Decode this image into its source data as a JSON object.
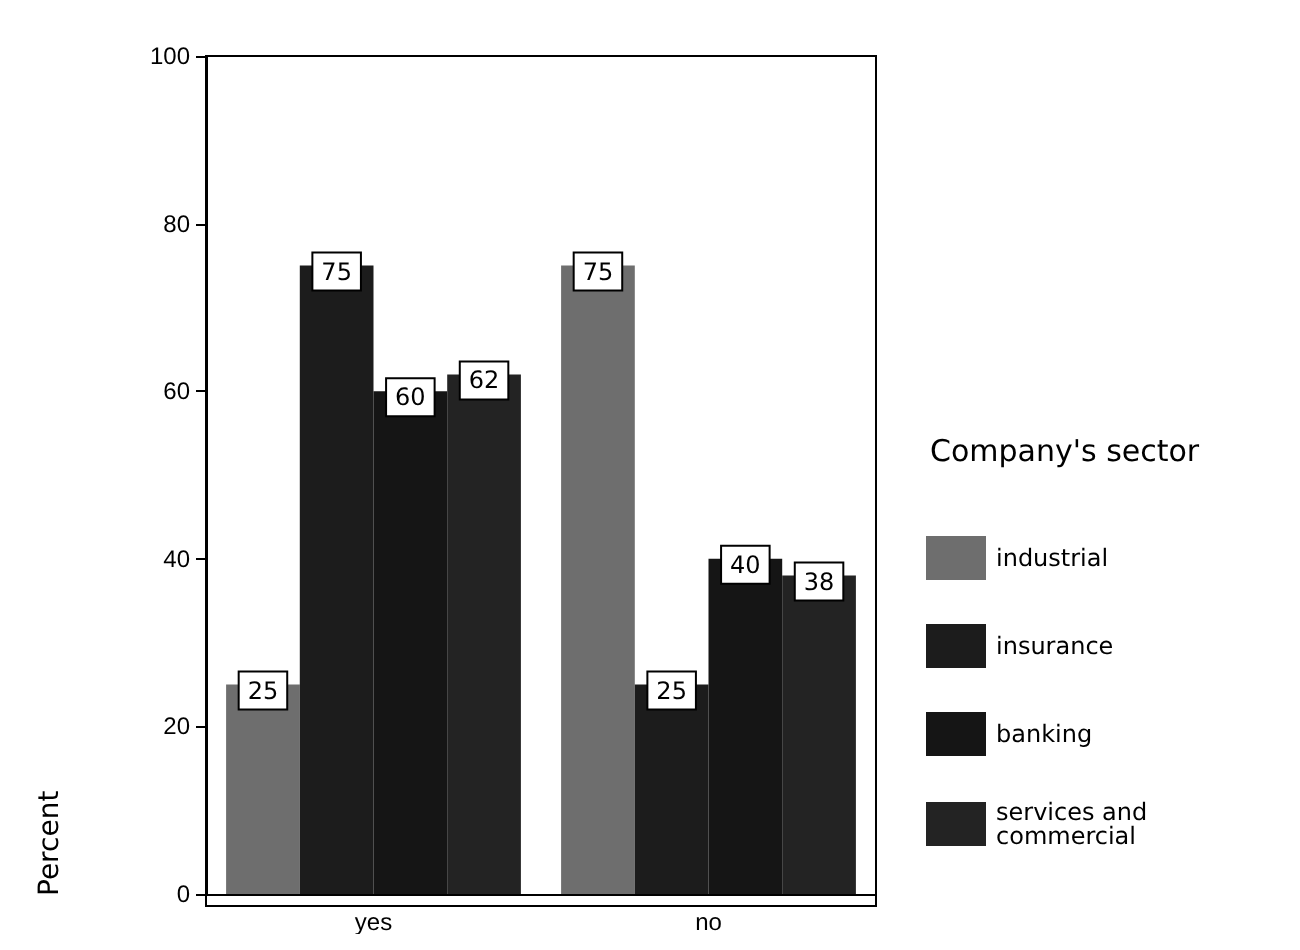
{
  "chart_data": {
    "type": "bar",
    "categories": [
      "yes",
      "no"
    ],
    "ylabel": "Percent",
    "legend_title": "Company's sector",
    "legend": "right",
    "ylim": [
      0,
      100
    ],
    "yticks": [
      0,
      20,
      40,
      60,
      80,
      100
    ],
    "grid": false,
    "data_labels": true,
    "series": [
      {
        "name": "industrial",
        "color": "#6e6e6e",
        "values": [
          25,
          75
        ]
      },
      {
        "name": "insurance",
        "color": "#1c1c1c",
        "values": [
          75,
          25
        ]
      },
      {
        "name": "banking",
        "color": "#151515",
        "values": [
          60,
          40
        ]
      },
      {
        "name": "services and commercial",
        "color": "#232323",
        "values": [
          62,
          38
        ]
      }
    ]
  }
}
